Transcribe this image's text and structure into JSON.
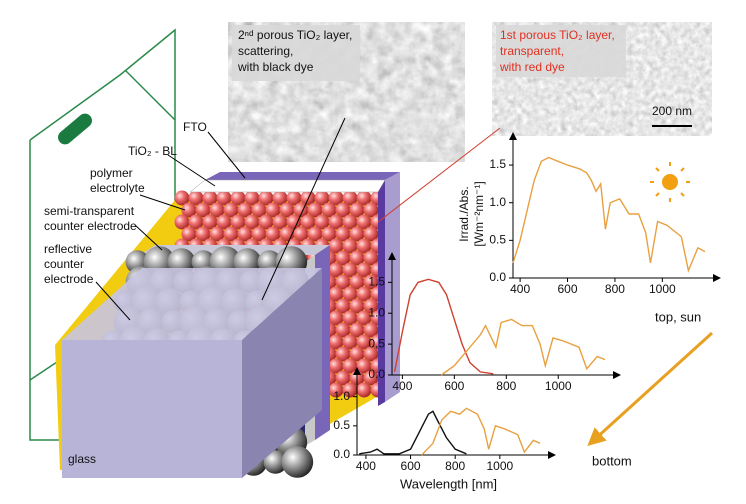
{
  "sem_images": [
    {
      "caption": [
        "2ⁿᵈ porous TiO₂ layer,",
        "scattering,",
        "with black dye"
      ]
    },
    {
      "caption": [
        "1st porous TiO₂ layer,",
        "transparent,",
        "with red dye"
      ],
      "scale_bar": "200 nm"
    }
  ],
  "layer_labels": {
    "fto": "FTO",
    "tio2_bl": "TiO₂ - BL",
    "polymer_electrolyte": [
      "polymer",
      "electrolyte"
    ],
    "semi_transparent": [
      "semi-transparent",
      "counter electrode"
    ],
    "reflective": [
      "reflective",
      "counter",
      "electrode"
    ],
    "glass": "glass"
  },
  "direction": {
    "top": "top, sun",
    "bottom": "bottom"
  },
  "chart_data": [
    {
      "type": "line",
      "ylabel": [
        "Irrad./Abs.",
        "[Wm⁻²nm⁻¹]"
      ],
      "xlim": [
        370,
        1180
      ],
      "ylim": [
        0,
        1.7
      ],
      "xticks": [
        400,
        600,
        800,
        1000
      ],
      "yticks": [
        {
          "value": 0,
          "label": "0.0"
        },
        0.5,
        {
          "value": 1,
          "label": "1.0"
        },
        1.5
      ],
      "series": [
        {
          "color": "#e8a040",
          "x": [
            370,
            400,
            430,
            460,
            490,
            520,
            560,
            600,
            650,
            680,
            700,
            720,
            740,
            760,
            780,
            820,
            860,
            900,
            930,
            950,
            980,
            1020,
            1080,
            1110,
            1150,
            1180
          ],
          "values": [
            0.2,
            0.5,
            0.9,
            1.3,
            1.55,
            1.6,
            1.55,
            1.5,
            1.45,
            1.4,
            1.3,
            1.15,
            1.25,
            0.65,
            1.0,
            1.05,
            0.85,
            0.85,
            0.6,
            0.2,
            0.75,
            0.7,
            0.55,
            0.1,
            0.4,
            0.35
          ]
        }
      ]
    },
    {
      "type": "line",
      "xlim": [
        360,
        1180
      ],
      "ylim": [
        0,
        1.7
      ],
      "xticks": [
        400,
        600,
        800,
        1000
      ],
      "yticks": [
        {
          "value": 0,
          "label": "0.0"
        },
        0.5,
        {
          "value": 1,
          "label": "1.0"
        },
        1.5
      ],
      "series": [
        {
          "color": "#d04030",
          "x": [
            370,
            400,
            430,
            460,
            500,
            540,
            570,
            600,
            630,
            660,
            700,
            750
          ],
          "values": [
            0.05,
            0.7,
            1.3,
            1.5,
            1.55,
            1.5,
            1.3,
            0.9,
            0.5,
            0.2,
            0.05,
            0.02
          ]
        },
        {
          "color": "#e8a040",
          "x": [
            550,
            600,
            650,
            700,
            720,
            760,
            780,
            820,
            860,
            900,
            930,
            950,
            980,
            1020,
            1080,
            1110,
            1150,
            1180
          ],
          "values": [
            0,
            0.15,
            0.4,
            0.65,
            0.8,
            0.45,
            0.85,
            0.9,
            0.8,
            0.8,
            0.5,
            0.15,
            0.6,
            0.55,
            0.45,
            0.1,
            0.3,
            0.25
          ]
        }
      ]
    },
    {
      "type": "line",
      "xlabel": "Wavelength [nm]",
      "xlim": [
        360,
        1180
      ],
      "ylim": [
        0,
        1.2
      ],
      "xticks": [
        400,
        600,
        800,
        1000
      ],
      "yticks": [
        {
          "value": 0,
          "label": "0.0"
        },
        0.5,
        {
          "value": 1,
          "label": "1.0"
        }
      ],
      "series": [
        {
          "color": "#111111",
          "x": [
            370,
            420,
            450,
            480,
            550,
            600,
            640,
            680,
            700,
            720,
            760,
            800,
            850
          ],
          "values": [
            0.02,
            0.05,
            0.1,
            0.02,
            0.02,
            0.1,
            0.4,
            0.7,
            0.75,
            0.6,
            0.3,
            0.1,
            0.02
          ]
        },
        {
          "color": "#e8a040",
          "x": [
            650,
            700,
            740,
            780,
            820,
            850,
            900,
            930,
            950,
            980,
            1020,
            1080,
            1110,
            1150,
            1180
          ],
          "values": [
            0,
            0.2,
            0.6,
            0.75,
            0.7,
            0.8,
            0.7,
            0.45,
            0.1,
            0.5,
            0.45,
            0.35,
            0.05,
            0.25,
            0.2
          ]
        }
      ]
    }
  ]
}
